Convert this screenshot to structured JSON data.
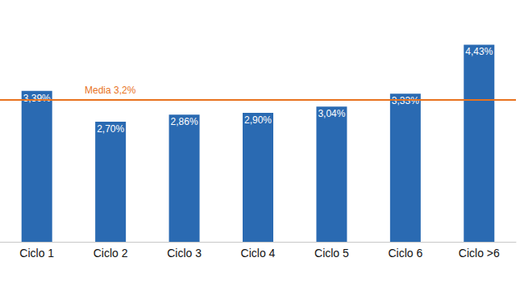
{
  "chart_data": {
    "type": "bar",
    "categories": [
      "Ciclo 1",
      "Ciclo 2",
      "Ciclo 3",
      "Ciclo 4",
      "Ciclo 5",
      "Ciclo 6",
      "Ciclo >6"
    ],
    "values": [
      3.39,
      2.7,
      2.86,
      2.9,
      3.04,
      3.33,
      4.43
    ],
    "value_labels": [
      "3,39%",
      "2,70%",
      "2,86%",
      "2,90%",
      "3,04%",
      "3,33%",
      "4,43%"
    ],
    "color": "#2a6ab2",
    "ylim": [
      0,
      5
    ],
    "grid": false,
    "data_labels": true,
    "tick_labels": "x",
    "annotations": [
      {
        "text": "Media 3,2%",
        "value": 3.2,
        "color": "#e8731e"
      }
    ]
  }
}
